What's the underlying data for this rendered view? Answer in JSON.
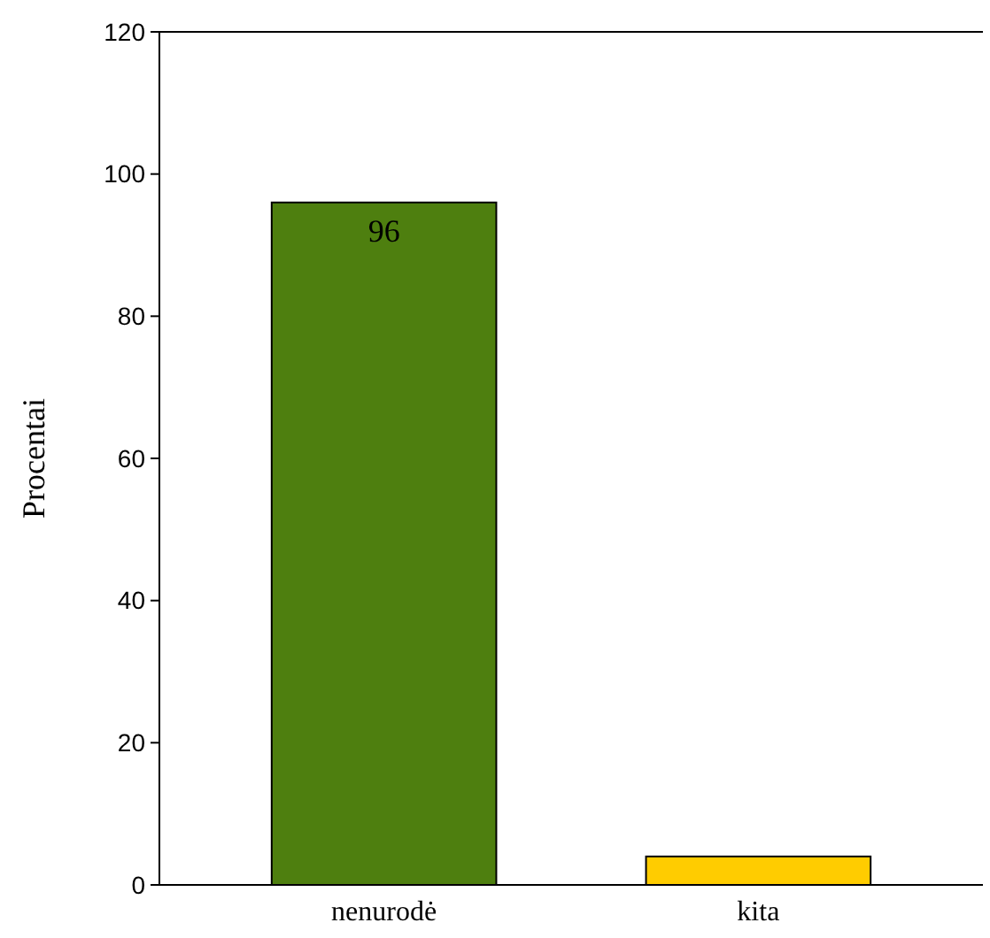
{
  "chart_data": {
    "type": "bar",
    "ylabel": "Procentai",
    "categories": [
      "nenurodė",
      "kita"
    ],
    "values": [
      96,
      4
    ],
    "colors": [
      "#4e7f0f",
      "#ffcc00"
    ],
    "value_labels": [
      "96",
      null
    ],
    "ylim": [
      0,
      120
    ],
    "yticks": [
      0,
      20,
      40,
      60,
      80,
      100,
      120
    ],
    "grid": false
  }
}
